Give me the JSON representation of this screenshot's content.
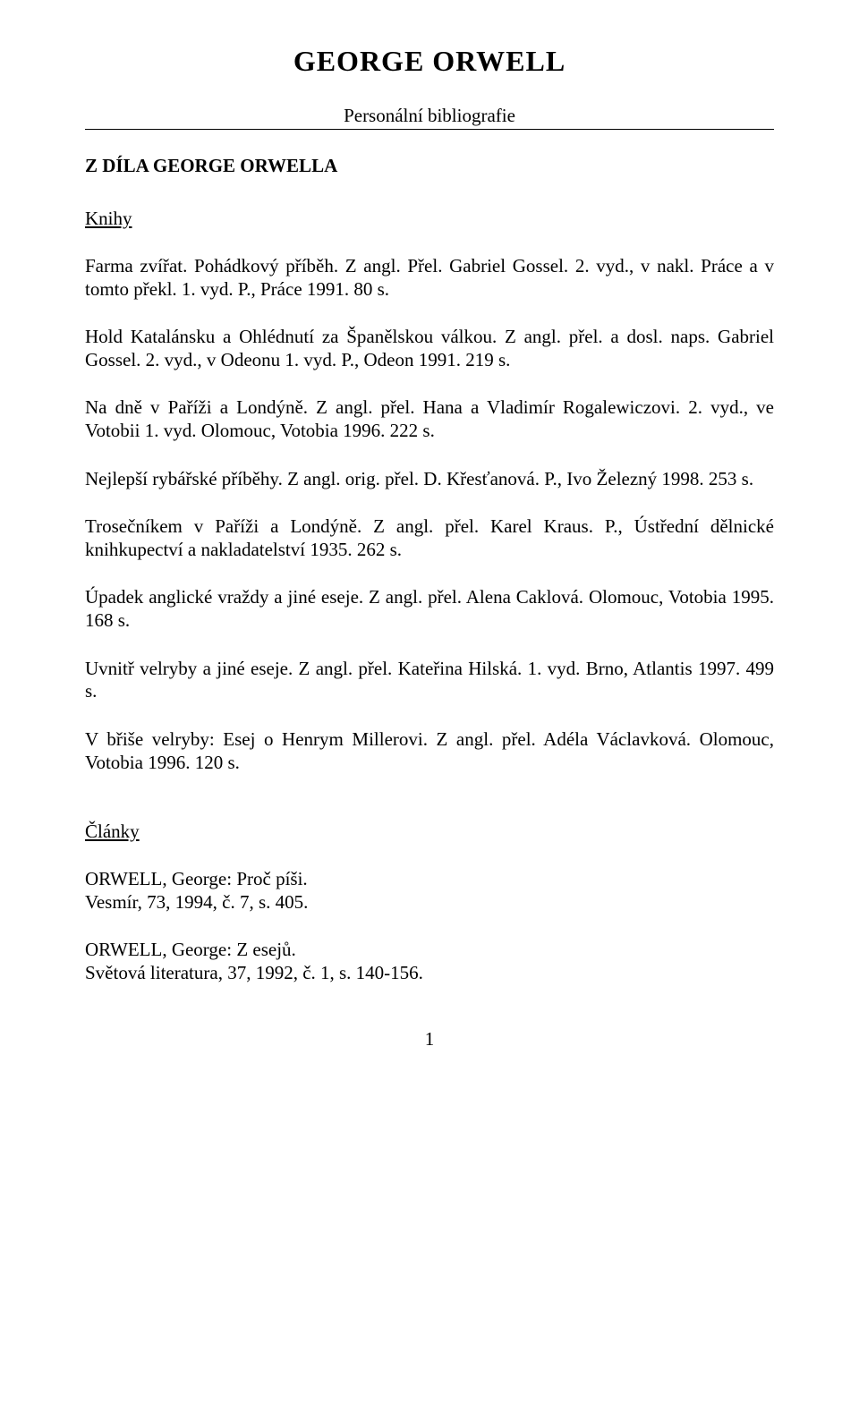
{
  "title": "GEORGE  ORWELL",
  "subtitle": "Personální bibliografie",
  "section_heading": "Z DÍLA GEORGE ORWELLA",
  "books_heading": "Knihy",
  "entries": [
    "Farma zvířat. Pohádkový příběh. Z angl. Přel. Gabriel Gossel. 2. vyd., v nakl. Práce a v tomto překl. 1. vyd. P., Práce 1991. 80 s.",
    "Hold Katalánsku a Ohlédnutí za Španělskou válkou. Z angl. přel. a dosl. naps. Gabriel Gossel. 2. vyd., v Odeonu 1. vyd. P., Odeon 1991. 219 s.",
    "Na dně v Paříži a Londýně. Z angl. přel. Hana a Vladimír Rogalewiczovi. 2. vyd., ve Votobii 1. vyd. Olomouc, Votobia 1996. 222 s.",
    "Nejlepší rybářské příběhy. Z angl. orig. přel. D. Křesťanová. P., Ivo Železný 1998. 253 s.",
    "Trosečníkem v Paříži a Londýně. Z angl. přel. Karel Kraus. P., Ústřední dělnické knihkupectví a nakladatelství 1935. 262 s.",
    "Úpadek anglické vraždy a jiné eseje. Z angl. přel. Alena Caklová. Olomouc, Votobia 1995. 168 s.",
    "Uvnitř velryby a jiné eseje. Z angl. přel. Kateřina Hilská. 1. vyd. Brno, Atlantis 1997. 499 s.",
    "V břiše velryby: Esej o Henrym Millerovi. Z angl. přel. Adéla Václavková. Olomouc, Votobia 1996. 120 s."
  ],
  "articles_heading": "Články",
  "articles": [
    {
      "line1": "ORWELL, George: Proč píši.",
      "line2": "Vesmír, 73, 1994, č. 7, s. 405."
    },
    {
      "line1": "ORWELL, George: Z esejů.",
      "line2": "Světová literatura, 37, 1992, č. 1, s. 140-156."
    }
  ],
  "page_number": "1"
}
